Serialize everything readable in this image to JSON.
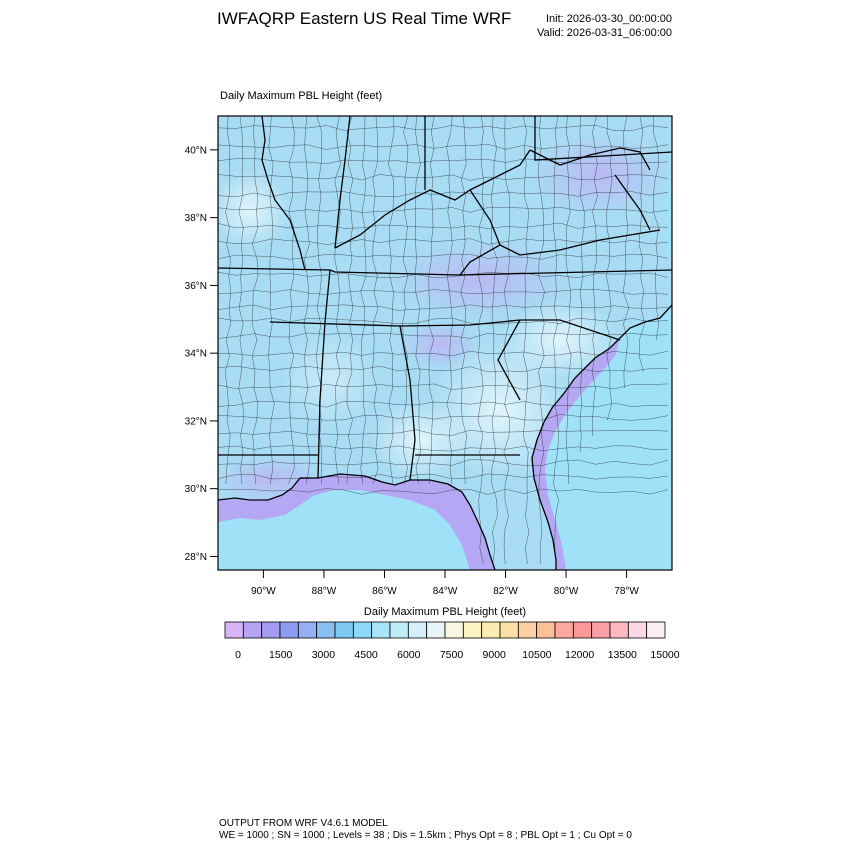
{
  "header": {
    "title": "IWFAQRP Eastern US Real Time WRF",
    "init": "Init: 2026-03-30_00:00:00",
    "valid": "Valid: 2026-03-31_06:00:00"
  },
  "field_title": "Daily Maximum PBL Height   (feet)",
  "map": {
    "lon_range": [
      -91.5,
      -76.5
    ],
    "lat_range": [
      27.6,
      41.0
    ],
    "lat_ticks": [
      "40°N",
      "38°N",
      "36°N",
      "34°N",
      "32°N",
      "30°N",
      "28°N"
    ],
    "lon_ticks": [
      "90°W",
      "88°W",
      "86°W",
      "84°W",
      "82°W",
      "80°W",
      "78°W"
    ],
    "colors": {
      "land_light": "#c8ecf8",
      "land_mid": "#a8dcf4",
      "land_violet": "#c4c0f4",
      "ocean": "#9fe2f8",
      "gulf": "#b4a8f4",
      "borders": "#000000"
    }
  },
  "colorbar": {
    "title": "Daily Maximum PBL Height  (feet)",
    "labels": [
      "0",
      "1500",
      "3000",
      "4500",
      "6000",
      "7500",
      "9000",
      "10500",
      "12000",
      "13500",
      "15000"
    ],
    "colors": [
      "#d8b4f8",
      "#b8a4f4",
      "#a49cf0",
      "#8c9cf0",
      "#94b0f4",
      "#88c0f0",
      "#7cc8f0",
      "#8cd8f8",
      "#a8e4f8",
      "#c0ecf8",
      "#d4f0f8",
      "#e8f4f8",
      "#f8f8e0",
      "#fcf4c0",
      "#fcecb4",
      "#fce0a8",
      "#fcd0a0",
      "#fcc098",
      "#fca8a0",
      "#fc9898",
      "#fca0a8",
      "#fcb8c0",
      "#fcd8e4",
      "#fcf0f4"
    ]
  },
  "footer": {
    "line1": "OUTPUT FROM WRF V4.6.1 MODEL",
    "line2": "WE = 1000 ; SN = 1000 ; Levels = 38 ; Dis = 1.5km ; Phys Opt = 8 ; PBL Opt = 1 ; Cu Opt = 0"
  }
}
